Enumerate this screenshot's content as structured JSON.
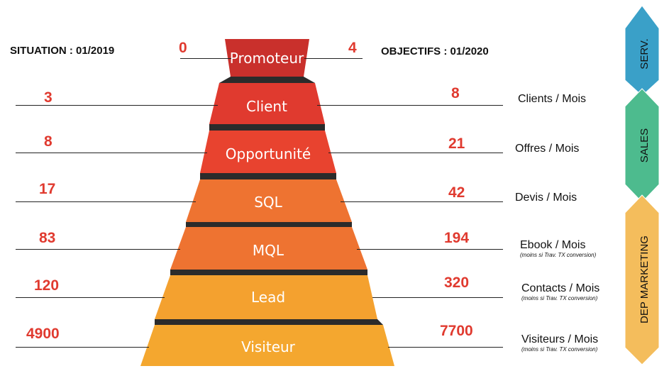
{
  "headers": {
    "left": "SITUATION : 01/2019",
    "right": "OBJECTIFS : 01/2020"
  },
  "stages": [
    {
      "label": "Promoteur",
      "situation": "0",
      "objectif": "4",
      "unit": "",
      "note": "",
      "color": "#c9302c"
    },
    {
      "label": "Client",
      "situation": "3",
      "objectif": "8",
      "unit": "Clients / Mois",
      "note": "",
      "color": "#e03a2f"
    },
    {
      "label": "Opportunité",
      "situation": "8",
      "objectif": "21",
      "unit": "Offres / Mois",
      "note": "",
      "color": "#e8432f"
    },
    {
      "label": "SQL",
      "situation": "17",
      "objectif": "42",
      "unit": "Devis / Mois",
      "note": "",
      "color": "#ee7331"
    },
    {
      "label": "MQL",
      "situation": "83",
      "objectif": "194",
      "unit": "Ebook / Mois",
      "note": "(moins si Trav. TX conversion)",
      "color": "#ee7331"
    },
    {
      "label": "Lead",
      "situation": "120",
      "objectif": "320",
      "unit": "Contacts / Mois",
      "note": "(moins si Trav. TX conversion)",
      "color": "#f4a12f"
    },
    {
      "label": "Visiteur",
      "situation": "4900",
      "objectif": "7700",
      "unit": "Visiteurs / Mois",
      "note": "(moins si Trav. TX conversion)",
      "color": "#f4a72f"
    }
  ],
  "departments": [
    {
      "label": "SERV.",
      "color": "#3aa0c8"
    },
    {
      "label": "SALES",
      "color": "#4dbb8e"
    },
    {
      "label": "DEP MARKETING",
      "color": "#f4bd5c"
    }
  ]
}
